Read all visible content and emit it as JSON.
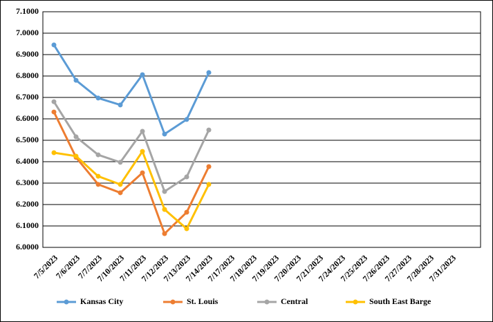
{
  "chart_data": {
    "type": "line",
    "categories": [
      "7/5/2023",
      "7/6/2023",
      "7/7/2023",
      "7/10/2023",
      "7/11/2023",
      "7/12/2023",
      "7/13/2023",
      "7/14/2023",
      "7/17/2023",
      "7/18/2023",
      "7/19/2023",
      "7/20/2023",
      "7/21/2023",
      "7/24/2023",
      "7/25/2023",
      "7/26/2023",
      "7/27/2023",
      "7/28/2023",
      "7/31/2023"
    ],
    "series": [
      {
        "name": "Kansas City",
        "color": "#5b9bd5",
        "values": [
          6.945,
          6.78,
          6.697,
          6.665,
          6.806,
          6.529,
          6.597,
          6.816,
          null,
          null,
          null,
          null,
          null,
          null,
          null,
          null,
          null,
          null,
          null
        ]
      },
      {
        "name": "St. Louis",
        "color": "#ed7d31",
        "values": [
          6.632,
          6.42,
          6.294,
          6.255,
          6.348,
          6.064,
          6.164,
          6.377,
          null,
          null,
          null,
          null,
          null,
          null,
          null,
          null,
          null,
          null,
          null
        ]
      },
      {
        "name": "Central",
        "color": "#a5a5a5",
        "values": [
          6.68,
          6.516,
          6.432,
          6.397,
          6.542,
          6.261,
          6.329,
          6.548,
          null,
          null,
          null,
          null,
          null,
          null,
          null,
          null,
          null,
          null,
          null
        ]
      },
      {
        "name": "South East Barge",
        "color": "#ffc000",
        "values": [
          6.442,
          6.426,
          6.332,
          6.294,
          6.448,
          6.177,
          6.087,
          6.294,
          null,
          null,
          null,
          null,
          null,
          null,
          null,
          null,
          null,
          null,
          null
        ]
      }
    ],
    "ylim": [
      6.0,
      7.1
    ],
    "yticks": [
      {
        "value": 6.0,
        "label": "6.0000"
      },
      {
        "value": 6.1,
        "label": "6.1000"
      },
      {
        "value": 6.2,
        "label": "6.2000"
      },
      {
        "value": 6.3,
        "label": "6.3000"
      },
      {
        "value": 6.4,
        "label": "6.4000"
      },
      {
        "value": 6.5,
        "label": "6.5000"
      },
      {
        "value": 6.6,
        "label": "6.6000"
      },
      {
        "value": 6.7,
        "label": "6.7000"
      },
      {
        "value": 6.8,
        "label": "6.8000"
      },
      {
        "value": 6.9,
        "label": "6.9000"
      },
      {
        "value": 7.0,
        "label": "7.0000"
      },
      {
        "value": 7.1,
        "label": "7.1000"
      }
    ],
    "grid": true,
    "legend": "bottom"
  }
}
